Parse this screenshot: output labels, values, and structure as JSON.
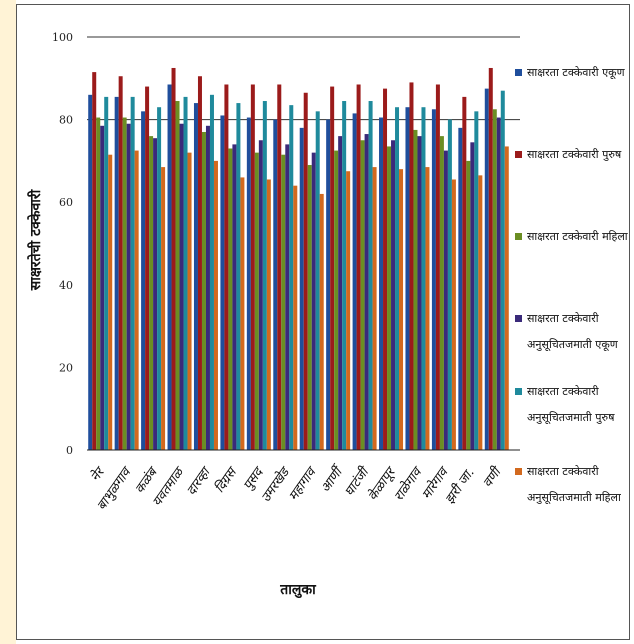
{
  "chart_data": {
    "type": "bar",
    "xlabel": "तालुका",
    "ylabel": "साक्षरतेची टक्केवारी",
    "ylim": [
      0,
      100
    ],
    "yticks": [
      0,
      20,
      40,
      60,
      80,
      100
    ],
    "categories": [
      "नेर",
      "बाभुळगाव",
      "कळंब",
      "यवतमाळ",
      "दारव्हा",
      "दिग्रस",
      "पुसद",
      "उमरखेड",
      "महागाव",
      "आर्णी",
      "घाटंजी",
      "केळापूर",
      "राळेगाव",
      "मारेगाव",
      "झरी जा.",
      "वणी"
    ],
    "series": [
      {
        "name": "साक्षरता टक्केवारी एकूण",
        "color": "#1f4e9c",
        "values": [
          86,
          85.5,
          82,
          88.5,
          84,
          81,
          80.5,
          80,
          78,
          80,
          81.5,
          80.5,
          83,
          82.5,
          78,
          87.5
        ]
      },
      {
        "name": "साक्षरता टक्केवारी पुरुष",
        "color": "#9b1b1b",
        "values": [
          91.5,
          90.5,
          88,
          92.5,
          90.5,
          88.5,
          88.5,
          88.5,
          86.5,
          88,
          88.5,
          87.5,
          89,
          88.5,
          85.5,
          92.5
        ]
      },
      {
        "name": "साक्षरता टक्केवारी महिला",
        "color": "#6b8e23",
        "values": [
          80.5,
          80.5,
          76,
          84.5,
          77,
          73,
          72,
          71.5,
          69,
          72.5,
          75,
          73.5,
          77.5,
          76,
          70,
          82.5
        ]
      },
      {
        "name": "साक्षरता टक्केवारी अनुसूचितजमाती एकूण",
        "color": "#3a2a7a",
        "values": [
          78.5,
          79,
          75.5,
          79,
          78.5,
          74,
          75,
          74,
          72,
          76,
          76.5,
          75,
          76,
          72.5,
          74.5,
          80.5
        ]
      },
      {
        "name": "साक्षरता टक्केवारी अनुसूचितजमाती पुरुष",
        "color": "#1f8a9c",
        "values": [
          85.5,
          85.5,
          83,
          85.5,
          86,
          84,
          84.5,
          83.5,
          82,
          84.5,
          84.5,
          83,
          83,
          80,
          82,
          87
        ]
      },
      {
        "name": "साक्षरता टक्केवारी अनुसूचितजमाती महिला",
        "color": "#d2691e",
        "values": [
          71.5,
          72.5,
          68.5,
          72,
          70,
          66,
          65.5,
          64,
          62,
          67.5,
          68.5,
          68,
          68.5,
          65.5,
          66.5,
          73.5
        ]
      }
    ],
    "legend_position": "right",
    "grid": "horizontal at 80 and 100"
  }
}
